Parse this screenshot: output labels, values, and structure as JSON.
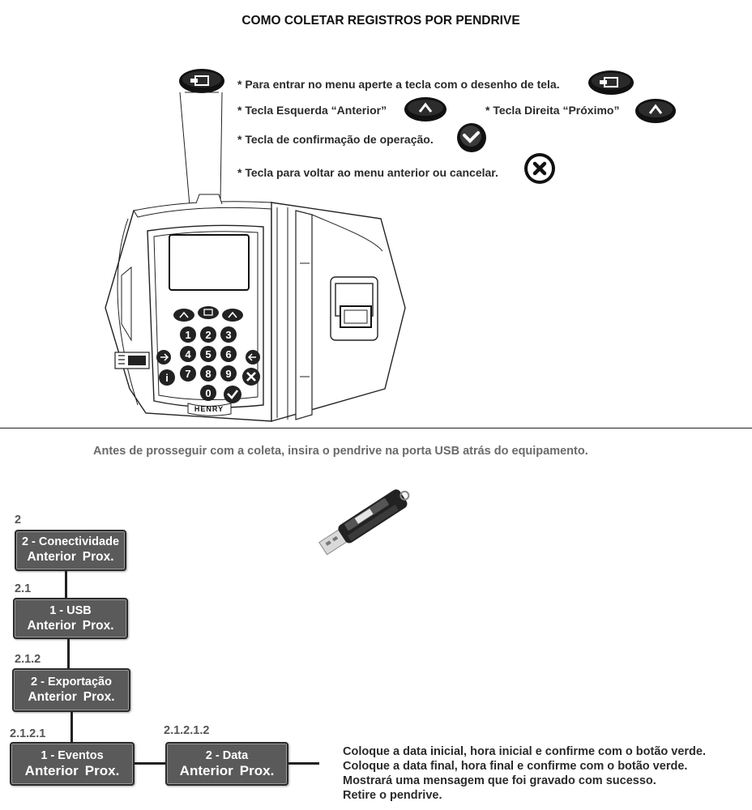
{
  "title": "COMO COLETAR REGISTROS POR PENDRIVE",
  "instructions": {
    "menu": "* Para entrar no menu aperte a tecla com o desenho de tela.",
    "left_key": "* Tecla Esquerda “Anterior”",
    "right_key": "* Tecla Direita “Próximo”",
    "confirm": "* Tecla de confirmação de operação.",
    "cancel": "* Tecla para voltar ao menu anterior ou cancelar."
  },
  "device": {
    "brand": "HENRY",
    "keypad_digits": [
      "1",
      "2",
      "3",
      "4",
      "5",
      "6",
      "7",
      "8",
      "9",
      "0"
    ]
  },
  "notice": "Antes de prosseguir com a coleta, insira o pendrive na porta USB atrás do equipamento.",
  "menu_steps": [
    {
      "number": "2",
      "title": "2 - Conectividade",
      "prev": "Anterior",
      "next": "Prox."
    },
    {
      "number": "2.1",
      "title": "1 - USB",
      "prev": "Anterior",
      "next": "Prox."
    },
    {
      "number": "2.1.2",
      "title": "2 - Exportação",
      "prev": "Anterior",
      "next": "Prox."
    },
    {
      "number": "2.1.2.1",
      "title": "1 - Eventos",
      "prev": "Anterior",
      "next": "Prox."
    },
    {
      "number": "2.1.2.1.2",
      "title": "2 - Data",
      "prev": "Anterior",
      "next": "Prox."
    }
  ],
  "final_instructions": [
    "Coloque a data inicial, hora inicial e confirme com o botão verde.",
    "Coloque a data final, hora final e confirme com o botão verde.",
    "Mostrará uma mensagem que foi gravado com sucesso.",
    "Retire o pendrive."
  ]
}
